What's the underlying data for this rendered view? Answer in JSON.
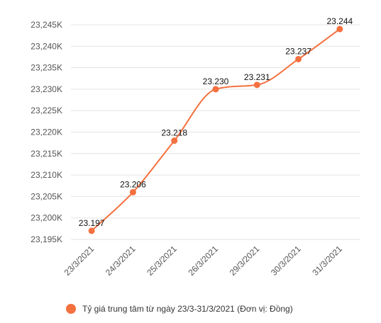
{
  "chart_data": {
    "type": "line",
    "categories": [
      "23/3/2021",
      "24/3/2021",
      "25/3/2021",
      "26/3/2021",
      "29/3/2021",
      "30/3/2021",
      "31/3/2021"
    ],
    "series": [
      {
        "name": "Tỷ giá trung tâm từ ngày 23/3-31/3/2021 (Đơn vị: Đồng)",
        "values": [
          23197,
          23206,
          23218,
          23230,
          23231,
          23237,
          23244
        ],
        "labels": [
          "23.197",
          "23.206",
          "23.218",
          "23.230",
          "23.231",
          "23.237",
          "23.244"
        ],
        "color": "#F4703F"
      }
    ],
    "y_ticks": [
      23195,
      23200,
      23205,
      23210,
      23215,
      23220,
      23225,
      23230,
      23235,
      23240,
      23245
    ],
    "y_tick_labels": [
      "23,195K",
      "23,200K",
      "23,205K",
      "23,210K",
      "23,215K",
      "23,220K",
      "23,225K",
      "23,230K",
      "23,235K",
      "23,240K",
      "23,245K"
    ],
    "ylim": [
      23195,
      23245
    ],
    "grid": true,
    "legend": "bottom-center"
  }
}
